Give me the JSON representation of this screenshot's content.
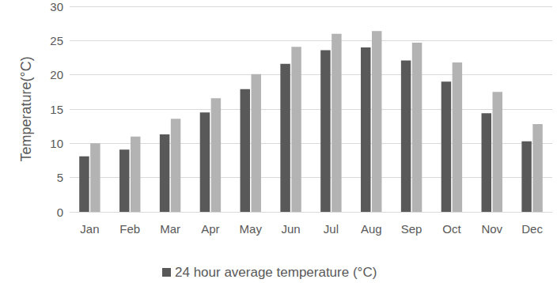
{
  "chart_data": {
    "type": "bar",
    "y_label": "Temperature(°C)",
    "categories": [
      "Jan",
      "Feb",
      "Mar",
      "Apr",
      "May",
      "Jun",
      "Jul",
      "Aug",
      "Sep",
      "Oct",
      "Nov",
      "Dec"
    ],
    "series": [
      {
        "name": "24 hour average temperature (°C)",
        "color": "#595959",
        "values": [
          8.1,
          9.1,
          11.3,
          14.5,
          17.9,
          21.6,
          23.6,
          24.0,
          22.1,
          19.0,
          14.4,
          10.3
        ]
      },
      {
        "color": "#b3b3b3",
        "values": [
          10.0,
          11.0,
          13.6,
          16.6,
          20.1,
          24.1,
          26.0,
          26.4,
          24.7,
          21.8,
          17.5,
          12.8
        ]
      }
    ],
    "ylim": [
      0,
      30
    ],
    "yticks": [
      0,
      5,
      10,
      15,
      20,
      25,
      30
    ],
    "grid": true,
    "legend": "bottom"
  }
}
